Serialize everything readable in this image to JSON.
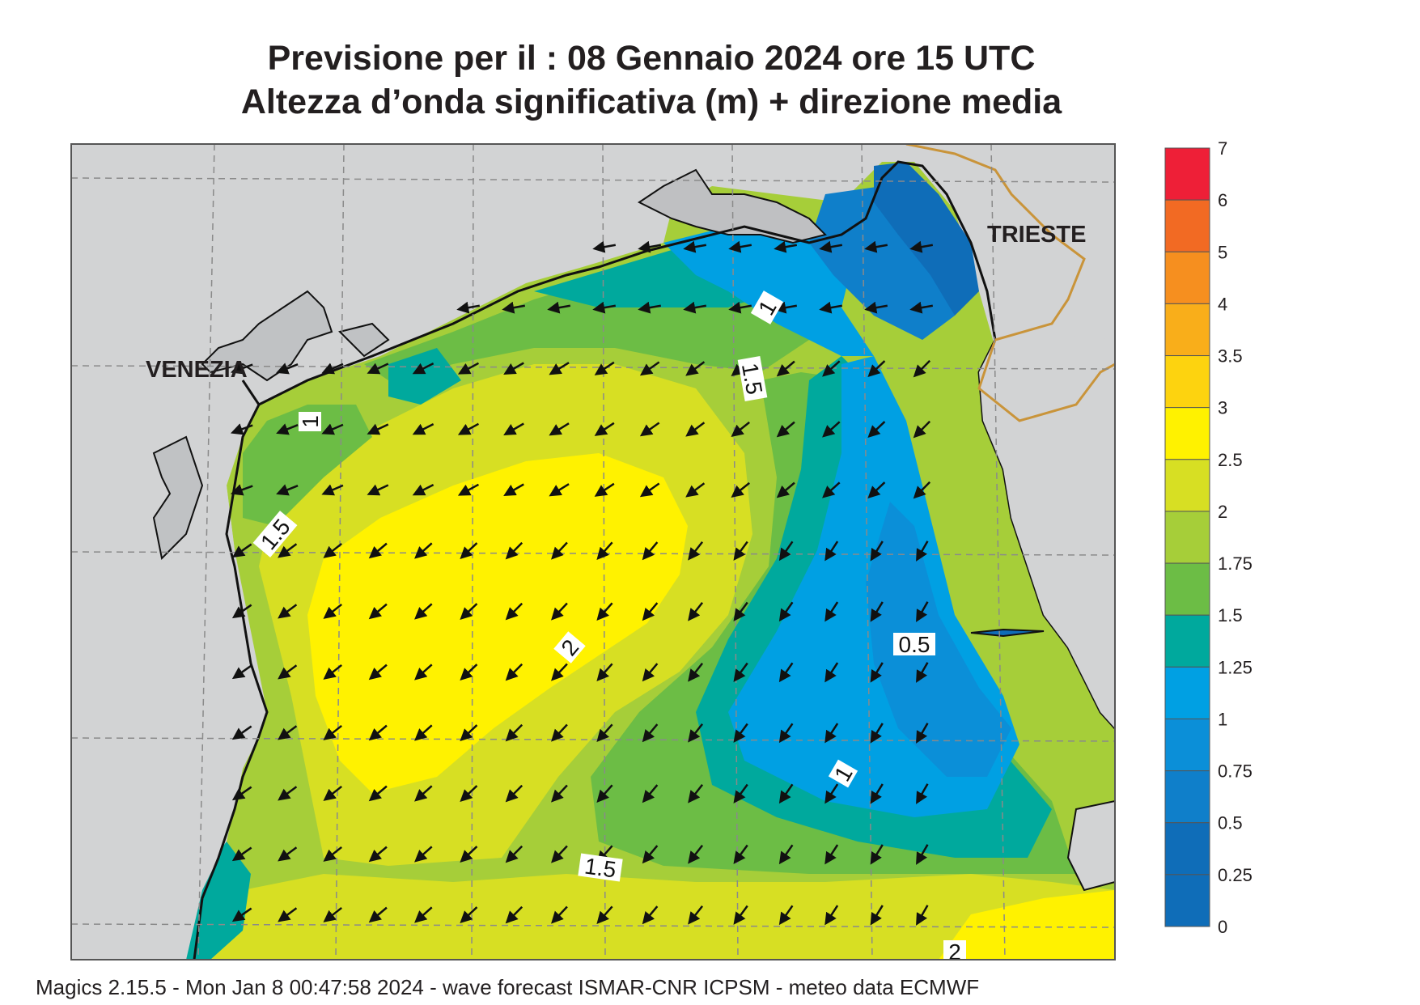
{
  "header": {
    "title_line1": "Previsione per il  :  08  Gennaio  2024   ore 15 UTC",
    "title_line2": "Altezza d’onda significativa (m) + direzione media"
  },
  "map": {
    "region": "Northern Adriatic Sea",
    "cities": [
      {
        "name": "VENEZIA"
      },
      {
        "name": "TRIESTE"
      }
    ],
    "contour_labels": [
      "1",
      "1.5",
      "1",
      "1.5",
      "2",
      "0.5",
      "1",
      "1.5",
      "2"
    ],
    "wave_direction": "from north-east, arrows pointing south-west"
  },
  "legend": {
    "levels": [
      {
        "value": "7",
        "color": "#f0167a"
      },
      {
        "value": "6",
        "color": "#ee1f37"
      },
      {
        "value": "5",
        "color": "#f26a23"
      },
      {
        "value": "4",
        "color": "#f68f1f"
      },
      {
        "value": "3.5",
        "color": "#f9ae1a"
      },
      {
        "value": "3",
        "color": "#fdd30f"
      },
      {
        "value": "2.5",
        "color": "#fff200"
      },
      {
        "value": "2",
        "color": "#d7df23"
      },
      {
        "value": "1.75",
        "color": "#a6ce39"
      },
      {
        "value": "1.5",
        "color": "#6cbd45"
      },
      {
        "value": "1.25",
        "color": "#00a99d"
      },
      {
        "value": "1",
        "color": "#00a0e3"
      },
      {
        "value": "0.75",
        "color": "#0b8fd8"
      },
      {
        "value": "0.5",
        "color": "#0f7fca"
      },
      {
        "value": "0.25",
        "color": "#0f6db8"
      },
      {
        "value": "0",
        "color": "#0f6db8"
      }
    ]
  },
  "footer": {
    "text": "Magics 2.15.5 - Mon Jan  8 00:47:58 2024 - wave forecast  ISMAR-CNR  ICPSM - meteo data    ECMWF"
  }
}
